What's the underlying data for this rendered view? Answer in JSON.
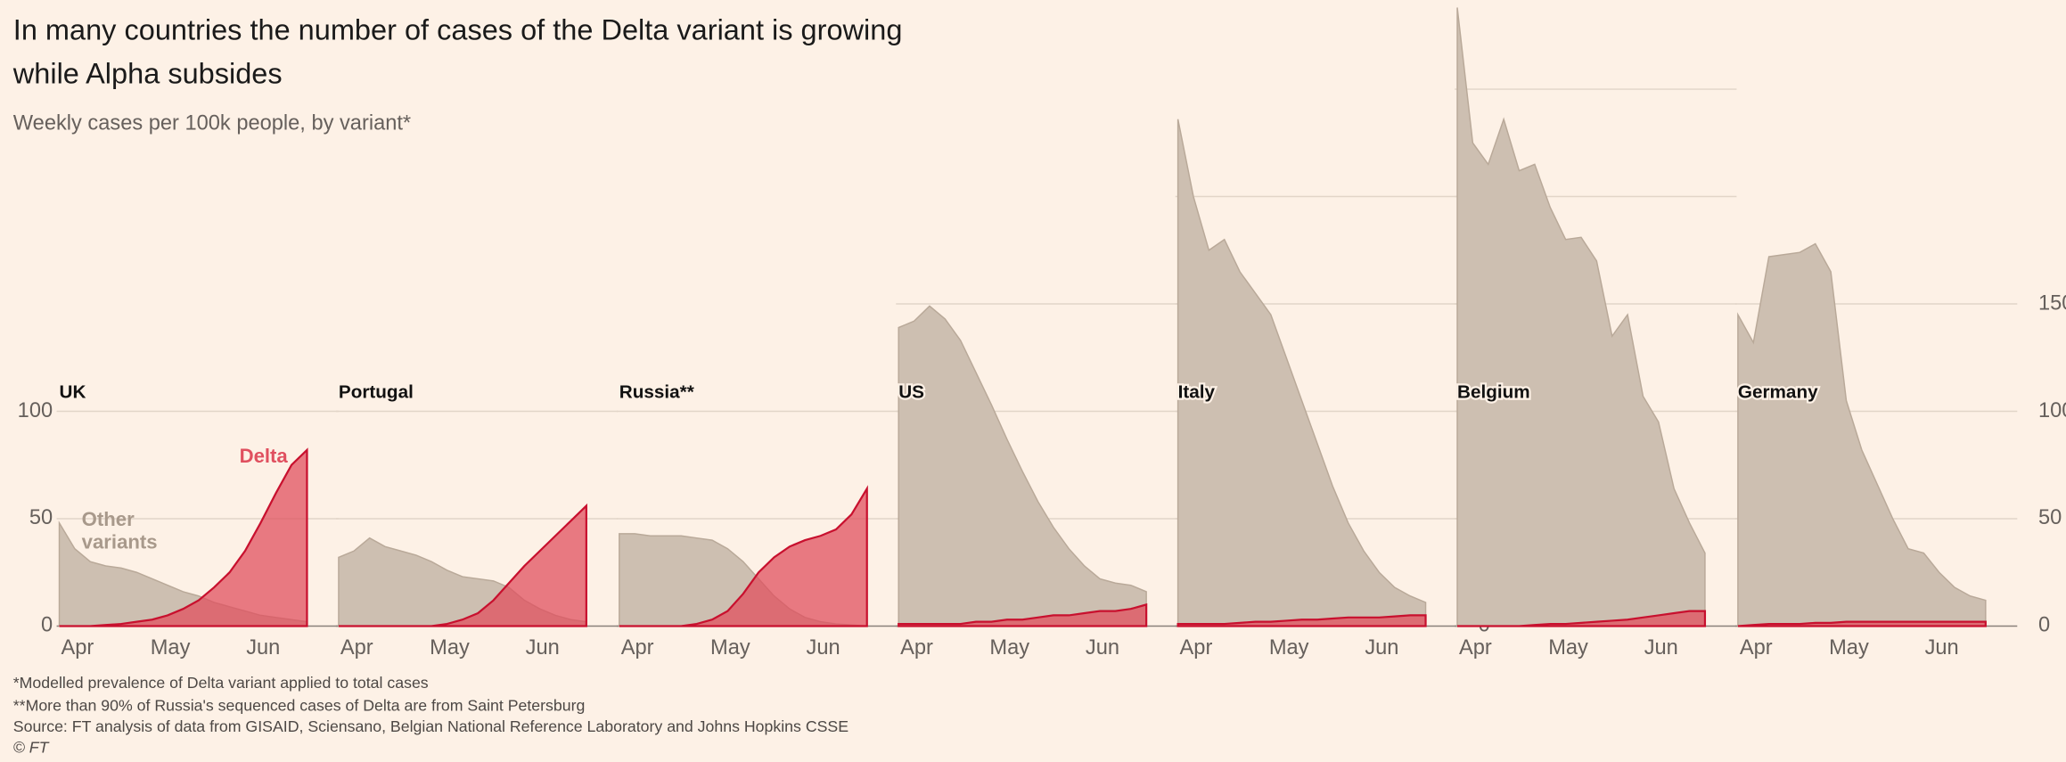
{
  "title": "In many countries the number of cases of the Delta variant is growing while Alpha subsides",
  "subtitle": "Weekly cases per 100k people, by variant*",
  "footnotes": [
    "*Modelled prevalence of Delta variant applied to total cases",
    "**More than 90% of Russia's sequenced cases of Delta are from Saint Petersburg",
    "Source: FT analysis of data from GISAID, Sciensano, Belgian National Reference Laboratory and Johns Hopkins CSSE",
    "© FT"
  ],
  "chart_data": [
    {
      "type": "area",
      "title": "UK",
      "categories": [
        null,
        "Apr",
        null,
        null,
        null,
        null,
        null,
        "May",
        null,
        null,
        null,
        null,
        null,
        "Jun",
        null,
        null,
        null
      ],
      "ylim": [
        0,
        290
      ],
      "yticks": [
        0,
        50,
        100
      ],
      "ytick_labels": "left",
      "series": [
        {
          "name": "Other variants",
          "color": "#cdbfb1",
          "values": [
            48,
            36,
            30,
            28,
            27,
            25,
            22,
            19,
            16,
            14,
            11,
            9,
            7,
            5,
            4,
            3,
            2
          ]
        },
        {
          "name": "Delta",
          "color": "#e0505f",
          "values": [
            0,
            0,
            0,
            0.5,
            1,
            2,
            3,
            5,
            8,
            12,
            18,
            25,
            35,
            48,
            62,
            75,
            82
          ]
        }
      ]
    },
    {
      "type": "area",
      "title": "Portugal",
      "categories": [
        null,
        "Apr",
        null,
        null,
        null,
        null,
        null,
        "May",
        null,
        null,
        null,
        null,
        null,
        "Jun",
        null,
        null,
        null
      ],
      "ylim": [
        0,
        290
      ],
      "yticks": [
        0,
        50,
        100
      ],
      "series": [
        {
          "color": "#cdbfb1",
          "values": [
            32,
            35,
            41,
            37,
            35,
            33,
            30,
            26,
            23,
            22,
            21,
            18,
            12,
            8,
            5,
            3,
            2
          ]
        },
        {
          "color": "#e0505f",
          "values": [
            0,
            0,
            0,
            0,
            0,
            0,
            0,
            1,
            3,
            6,
            12,
            20,
            28,
            35,
            42,
            49,
            56
          ]
        }
      ]
    },
    {
      "type": "area",
      "title": "Russia**",
      "categories": [
        null,
        "Apr",
        null,
        null,
        null,
        null,
        null,
        "May",
        null,
        null,
        null,
        null,
        null,
        "Jun",
        null,
        null,
        null
      ],
      "ylim": [
        0,
        290
      ],
      "yticks": [
        0,
        50,
        100
      ],
      "series": [
        {
          "color": "#cdbfb1",
          "values": [
            43,
            43,
            42,
            42,
            42,
            41,
            40,
            36,
            30,
            22,
            14,
            8,
            4,
            2,
            1,
            0.5,
            0
          ]
        },
        {
          "color": "#e0505f",
          "values": [
            0,
            0,
            0,
            0,
            0,
            1,
            3,
            7,
            15,
            25,
            32,
            37,
            40,
            42,
            45,
            52,
            64
          ]
        }
      ]
    },
    {
      "type": "area",
      "title": "US",
      "categories": [
        null,
        "Apr",
        null,
        null,
        null,
        null,
        null,
        "May",
        null,
        null,
        null,
        null,
        null,
        "Jun",
        null,
        null,
        null
      ],
      "ylim": [
        0,
        290
      ],
      "yticks": [
        0,
        50,
        100,
        150
      ],
      "series": [
        {
          "color": "#cdbfb1",
          "values": [
            139,
            142,
            149,
            143,
            133,
            118,
            103,
            87,
            72,
            58,
            46,
            36,
            28,
            22,
            20,
            19,
            16
          ]
        },
        {
          "color": "#e0505f",
          "values": [
            1,
            1,
            1,
            1,
            1,
            2,
            2,
            3,
            3,
            4,
            5,
            5,
            6,
            7,
            7,
            8,
            10
          ]
        }
      ]
    },
    {
      "type": "area",
      "title": "Italy",
      "categories": [
        null,
        "Apr",
        null,
        null,
        null,
        null,
        null,
        "May",
        null,
        null,
        null,
        null,
        null,
        "Jun",
        null,
        null,
        null
      ],
      "ylim": [
        0,
        290
      ],
      "yticks": [
        0,
        50,
        100,
        150,
        200
      ],
      "ytick_labels": "right",
      "series": [
        {
          "color": "#cdbfb1",
          "values": [
            236,
            200,
            175,
            180,
            165,
            155,
            145,
            125,
            105,
            85,
            65,
            48,
            35,
            25,
            18,
            14,
            11
          ]
        },
        {
          "color": "#e0505f",
          "values": [
            1,
            1,
            1,
            1,
            1.5,
            2,
            2,
            2.5,
            3,
            3,
            3.5,
            4,
            4,
            4,
            4.5,
            5,
            5
          ]
        }
      ]
    },
    {
      "type": "area",
      "title": "Belgium",
      "categories": [
        null,
        "Apr",
        null,
        null,
        null,
        null,
        null,
        "May",
        null,
        null,
        null,
        null,
        null,
        "Jun",
        null,
        null,
        null
      ],
      "ylim": [
        0,
        290
      ],
      "yticks": [
        0,
        50,
        100,
        150,
        200,
        250
      ],
      "series": [
        {
          "color": "#cdbfb1",
          "values": [
            288,
            225,
            215,
            236,
            212,
            215,
            195,
            180,
            181,
            170,
            135,
            145,
            107,
            95,
            64,
            48,
            34
          ]
        },
        {
          "color": "#e0505f",
          "values": [
            0,
            0,
            0,
            0,
            0,
            0.5,
            1,
            1,
            1.5,
            2,
            2.5,
            3,
            4,
            5,
            6,
            7,
            7
          ]
        }
      ]
    },
    {
      "type": "area",
      "title": "Germany",
      "categories": [
        null,
        "Apr",
        null,
        null,
        null,
        null,
        null,
        "May",
        null,
        null,
        null,
        null,
        null,
        "Jun",
        null,
        null,
        null
      ],
      "ylim": [
        0,
        290
      ],
      "yticks": [
        0,
        50,
        100,
        150
      ],
      "ytick_labels": "right",
      "series": [
        {
          "color": "#cdbfb1",
          "values": [
            145,
            132,
            172,
            173,
            174,
            178,
            165,
            105,
            82,
            66,
            50,
            36,
            34,
            25,
            18,
            14,
            12
          ]
        },
        {
          "color": "#e0505f",
          "values": [
            0,
            0.5,
            1,
            1,
            1,
            1.5,
            1.5,
            2,
            2,
            2,
            2,
            2,
            2,
            2,
            2,
            2,
            2
          ]
        }
      ]
    }
  ]
}
